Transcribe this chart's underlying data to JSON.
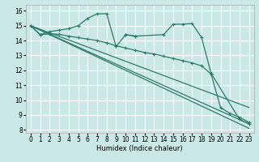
{
  "xlabel": "Humidex (Indice chaleur)",
  "xlim": [
    -0.5,
    23.5
  ],
  "ylim": [
    7.8,
    16.4
  ],
  "yticks": [
    8,
    9,
    10,
    11,
    12,
    13,
    14,
    15,
    16
  ],
  "xticks": [
    0,
    1,
    2,
    3,
    4,
    5,
    6,
    7,
    8,
    9,
    10,
    11,
    12,
    13,
    14,
    15,
    16,
    17,
    18,
    19,
    20,
    21,
    22,
    23
  ],
  "bg_color": "#cbe8e8",
  "grid_color": "#ffffff",
  "line_color": "#2a7a6a",
  "wavy1_segs": [
    {
      "x": [
        0,
        1,
        2,
        3,
        4,
        5,
        6,
        7,
        8,
        9,
        10,
        11
      ],
      "y": [
        15.0,
        14.4,
        14.6,
        14.7,
        14.8,
        15.0,
        15.5,
        15.8,
        15.8,
        13.6,
        14.4,
        14.3
      ]
    },
    {
      "x": [
        10,
        11,
        14,
        15,
        16,
        17,
        18,
        19
      ],
      "y": [
        14.4,
        14.3,
        14.4,
        15.1,
        15.1,
        15.15,
        14.2,
        11.8
      ]
    },
    {
      "x": [
        19,
        22,
        23
      ],
      "y": [
        11.8,
        8.7,
        8.4
      ]
    }
  ],
  "straight_lines": [
    {
      "x": [
        0,
        23
      ],
      "y": [
        15.0,
        8.4
      ]
    },
    {
      "x": [
        0,
        23
      ],
      "y": [
        15.0,
        8.1
      ]
    },
    {
      "x": [
        0,
        23
      ],
      "y": [
        15.0,
        9.5
      ]
    }
  ],
  "declining_curve": {
    "x": [
      0,
      1,
      2,
      3,
      4,
      5,
      6,
      7,
      8,
      9,
      10,
      11,
      12,
      13,
      14,
      15,
      16,
      17,
      18,
      19,
      20,
      21,
      22,
      23
    ],
    "y": [
      15.0,
      14.4,
      14.45,
      14.42,
      14.3,
      14.2,
      14.1,
      14.0,
      13.85,
      13.65,
      13.5,
      13.35,
      13.2,
      13.1,
      12.95,
      12.8,
      12.65,
      12.5,
      12.3,
      11.75,
      9.5,
      9.1,
      8.85,
      8.5
    ]
  },
  "linewidth": 0.9,
  "markersize": 3.0,
  "xlabel_fontsize": 6.0,
  "tick_fontsize": 5.5
}
